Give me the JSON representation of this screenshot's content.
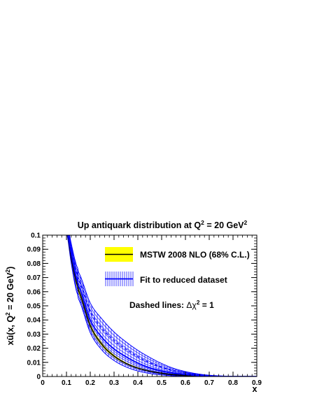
{
  "chart_data": {
    "type": "line",
    "title_main": "Up antiquark distribution at Q",
    "title_sup": "2",
    "title_rest": " = 20 GeV",
    "title_sup2": "2",
    "xlabel": "x",
    "ylabel_main": "xū(x, Q",
    "ylabel_sup": "2",
    "ylabel_mid": " = 20 GeV",
    "ylabel_sup2": "2",
    "ylabel_end": ")",
    "xlim": [
      0,
      0.9
    ],
    "ylim": [
      0,
      0.1
    ],
    "x_ticks": [
      "0",
      "0.1",
      "0.2",
      "0.3",
      "0.4",
      "0.5",
      "0.6",
      "0.7",
      "0.8",
      "0.9"
    ],
    "y_ticks": [
      "0",
      "0.01",
      "0.02",
      "0.03",
      "0.04",
      "0.05",
      "0.06",
      "0.07",
      "0.08",
      "0.09",
      "0.1"
    ],
    "legend": {
      "mstw": "MSTW 2008 NLO (68% C.L.)",
      "fit": "Fit to reduced dataset",
      "note_prefix": "Dashed lines: ",
      "note_sym": "Δχ",
      "note_sup": "2",
      "note_suffix": " = 1"
    },
    "colors": {
      "mstw_band": "#ffff00",
      "mstw_line": "#000000",
      "fit": "#0000ff"
    },
    "x": [
      0.1,
      0.12,
      0.14,
      0.15,
      0.2,
      0.25,
      0.3,
      0.35,
      0.4,
      0.45,
      0.5,
      0.55,
      0.6,
      0.65,
      0.7,
      0.75,
      0.8,
      0.85,
      0.9
    ],
    "series": [
      {
        "role": "mstw-central",
        "values": [
          0.105,
          0.084,
          0.068,
          0.061,
          0.036,
          0.0225,
          0.0145,
          0.0093,
          0.006,
          0.0038,
          0.0023,
          0.0013,
          0.0007,
          0.0003,
          0.0001,
          4e-05,
          0.0,
          0.0,
          0.0
        ]
      },
      {
        "role": "mstw-band-upper",
        "values": [
          0.107,
          0.0862,
          0.0702,
          0.063,
          0.0375,
          0.0237,
          0.0154,
          0.0099,
          0.0065,
          0.0042,
          0.0026,
          0.0015,
          0.0008,
          0.0004,
          0.00015,
          5e-05,
          0.0,
          0.0,
          0.0
        ]
      },
      {
        "role": "mstw-band-lower",
        "values": [
          0.103,
          0.0818,
          0.0658,
          0.059,
          0.0345,
          0.0213,
          0.0136,
          0.0087,
          0.0055,
          0.0034,
          0.002,
          0.0011,
          0.0006,
          0.0002,
          5e-05,
          0.0,
          0.0,
          0.0,
          0.0
        ]
      },
      {
        "role": "fit-central",
        "values": [
          0.106,
          0.087,
          0.071,
          0.064,
          0.04,
          0.0275,
          0.0195,
          0.014,
          0.0095,
          0.0062,
          0.004,
          0.0024,
          0.0014,
          0.0007,
          0.0003,
          0.0001,
          0.0,
          0.0,
          0.0
        ]
      },
      {
        "role": "fit-band-upper",
        "values": [
          0.11,
          0.094,
          0.08,
          0.074,
          0.052,
          0.0405,
          0.0315,
          0.0245,
          0.0185,
          0.0135,
          0.0092,
          0.0058,
          0.0035,
          0.0019,
          0.0009,
          0.0004,
          0.0001,
          0.0,
          0.0
        ]
      },
      {
        "role": "fit-band-lower",
        "values": [
          0.102,
          0.08,
          0.062,
          0.055,
          0.031,
          0.0185,
          0.0113,
          0.0068,
          0.0039,
          0.0021,
          0.0011,
          0.0005,
          0.0002,
          0.0001,
          0.0,
          0.0,
          0.0,
          0.0,
          0.0
        ]
      },
      {
        "role": "fit-dashed-upper",
        "values": [
          0.108,
          0.0905,
          0.0755,
          0.069,
          0.046,
          0.034,
          0.0255,
          0.0193,
          0.014,
          0.0098,
          0.0066,
          0.0041,
          0.0024,
          0.0013,
          0.0006,
          0.0002,
          0.0,
          0.0,
          0.0
        ]
      },
      {
        "role": "fit-dashed-lower",
        "values": [
          0.104,
          0.0835,
          0.0665,
          0.059,
          0.0345,
          0.0215,
          0.0138,
          0.0089,
          0.0056,
          0.0034,
          0.002,
          0.0011,
          0.0005,
          0.0002,
          0.0001,
          0.0,
          0.0,
          0.0,
          0.0
        ]
      }
    ]
  }
}
